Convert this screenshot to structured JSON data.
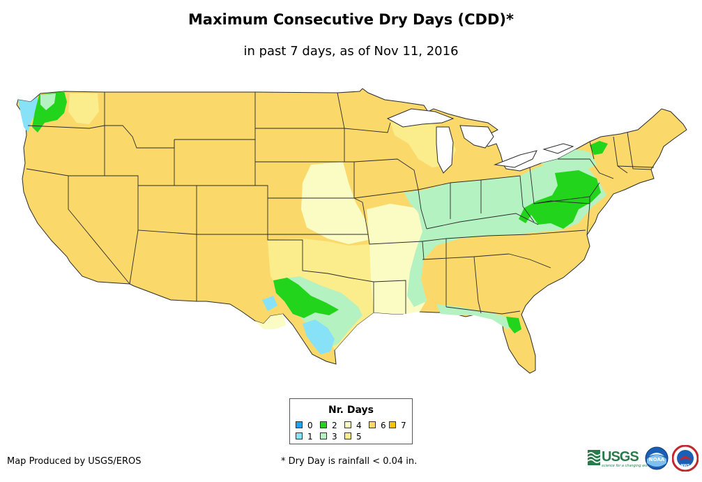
{
  "title": "Maximum Consecutive Dry Days (CDD)*",
  "subtitle": "in past 7 days, as of Nov 11, 2016",
  "legend": {
    "title": "Nr. Days",
    "items": [
      {
        "label": "0",
        "color": "#1fa1ec"
      },
      {
        "label": "1",
        "color": "#87e1f7"
      },
      {
        "label": "2",
        "color": "#22d41c"
      },
      {
        "label": "3",
        "color": "#b5f2c1"
      },
      {
        "label": "4",
        "color": "#fbfbc4"
      },
      {
        "label": "5",
        "color": "#fbec8c"
      },
      {
        "label": "6",
        "color": "#fad96a"
      },
      {
        "label": "7",
        "color": "#fbc400"
      }
    ]
  },
  "footer": {
    "credit": "Map Produced by USGS/EROS",
    "note": "* Dry Day is rainfall < 0.04 in."
  },
  "logos": {
    "usgs_text": "USGS",
    "usgs_tagline": "science for a changing world",
    "noaa_text": "NOAA",
    "nws_text": "NWS"
  },
  "colors": {
    "base": "#fad96a",
    "border": "#2b2b2b"
  }
}
